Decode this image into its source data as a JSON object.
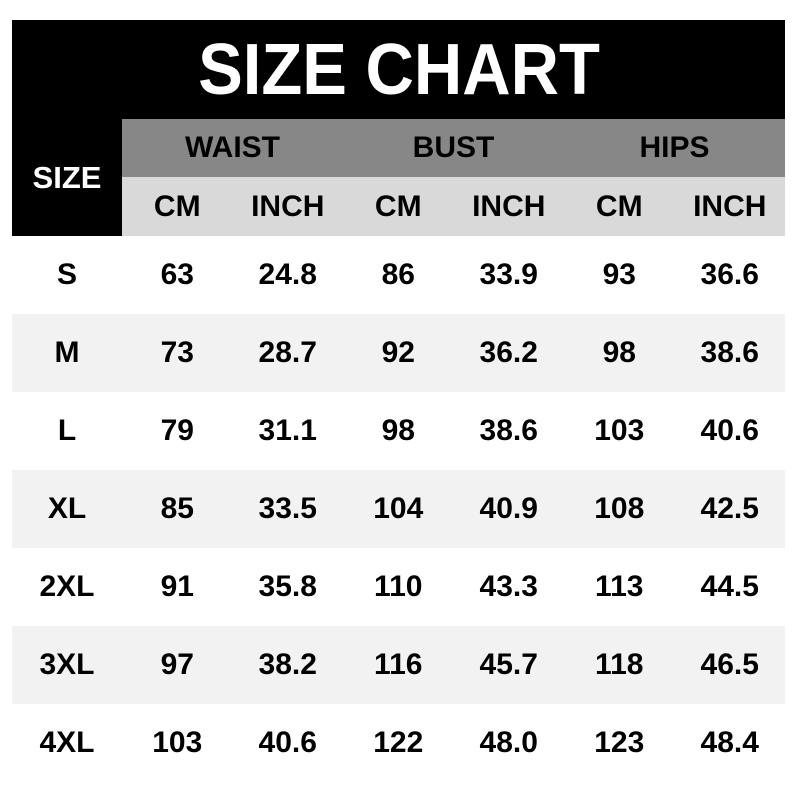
{
  "title": "SIZE CHART",
  "table": {
    "corner_label": "SIZE",
    "groups": [
      "WAIST",
      "BUST",
      "HIPS"
    ],
    "units": [
      "CM",
      "INCH",
      "CM",
      "INCH",
      "CM",
      "INCH"
    ],
    "rows": [
      {
        "size": "S",
        "values": [
          "63",
          "24.8",
          "86",
          "33.9",
          "93",
          "36.6"
        ]
      },
      {
        "size": "M",
        "values": [
          "73",
          "28.7",
          "92",
          "36.2",
          "98",
          "38.6"
        ]
      },
      {
        "size": "L",
        "values": [
          "79",
          "31.1",
          "98",
          "38.6",
          "103",
          "40.6"
        ]
      },
      {
        "size": "XL",
        "values": [
          "85",
          "33.5",
          "104",
          "40.9",
          "108",
          "42.5"
        ]
      },
      {
        "size": "2XL",
        "values": [
          "91",
          "35.8",
          "110",
          "43.3",
          "113",
          "44.5"
        ]
      },
      {
        "size": "3XL",
        "values": [
          "97",
          "38.2",
          "116",
          "45.7",
          "118",
          "46.5"
        ]
      },
      {
        "size": "4XL",
        "values": [
          "103",
          "40.6",
          "122",
          "48.0",
          "123",
          "48.4"
        ]
      }
    ]
  },
  "colors": {
    "banner_bg": "#000000",
    "banner_text": "#ffffff",
    "group_header_bg": "#878787",
    "unit_header_bg": "#d9d9d9",
    "stripe_bg": "#f2f2f2",
    "text": "#000000"
  },
  "chart_data": {
    "type": "table",
    "title": "SIZE CHART",
    "column_groups": [
      "WAIST",
      "BUST",
      "HIPS"
    ],
    "columns": [
      "SIZE",
      "WAIST CM",
      "WAIST INCH",
      "BUST CM",
      "BUST INCH",
      "HIPS CM",
      "HIPS INCH"
    ],
    "rows": [
      [
        "S",
        63,
        24.8,
        86,
        33.9,
        93,
        36.6
      ],
      [
        "M",
        73,
        28.7,
        92,
        36.2,
        98,
        38.6
      ],
      [
        "L",
        79,
        31.1,
        98,
        38.6,
        103,
        40.6
      ],
      [
        "XL",
        85,
        33.5,
        104,
        40.9,
        108,
        42.5
      ],
      [
        "2XL",
        91,
        35.8,
        110,
        43.3,
        113,
        44.5
      ],
      [
        "3XL",
        97,
        38.2,
        116,
        45.7,
        118,
        46.5
      ],
      [
        "4XL",
        103,
        40.6,
        122,
        48.0,
        123,
        48.4
      ]
    ],
    "layout": {
      "striped_rows": true,
      "gridlines": false,
      "header_spans_two_rows": true
    }
  }
}
